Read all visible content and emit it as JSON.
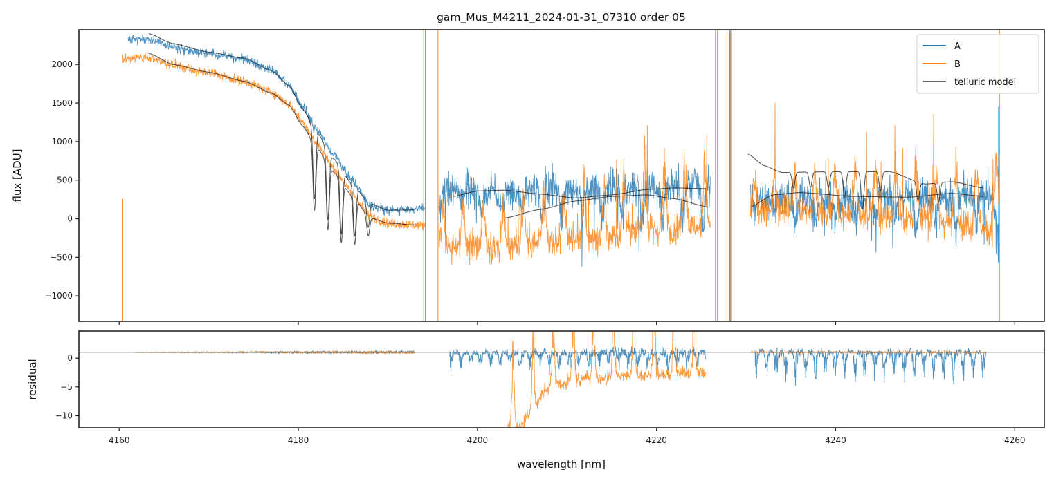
{
  "chart_data": [
    {
      "panel": "flux",
      "type": "line",
      "title": "gam_Mus_M4211_2024-01-31_07310  order 05",
      "xlabel": "",
      "ylabel": "flux [ADU]",
      "xlim": [
        4155.5,
        4263.3
      ],
      "ylim": [
        -1330,
        2450
      ],
      "xticks": [
        4160,
        4180,
        4200,
        4220,
        4240,
        4260
      ],
      "yticks": [
        -1000,
        -500,
        0,
        500,
        1000,
        1500,
        2000
      ],
      "ytick_labels": [
        "−1000",
        "−500",
        "0",
        "500",
        "1000",
        "1500",
        "2000"
      ],
      "grid": false,
      "legend": {
        "placement": "top-right",
        "entries": [
          {
            "label": "A",
            "color": "#1f77b4"
          },
          {
            "label": "B",
            "color": "#ff7f0e"
          },
          {
            "label": "telluric model",
            "color": "#666666"
          }
        ]
      },
      "series": [
        {
          "name": "A",
          "color": "#1f77b4",
          "segments": [
            {
              "x0": 4161.0,
              "x1": 4194.1,
              "continuum": [
                [
                  4161.0,
                  2330
                ],
                [
                  4163.0,
                  2330
                ],
                [
                  4166.0,
                  2230
                ],
                [
                  4170.0,
                  2140
                ],
                [
                  4174.0,
                  2070
                ],
                [
                  4177.0,
                  1930
                ],
                [
                  4179.0,
                  1720
                ],
                [
                  4180.5,
                  1450
                ],
                [
                  4182.0,
                  1150
                ],
                [
                  4184.0,
                  830
                ],
                [
                  4186.0,
                  500
                ],
                [
                  4188.0,
                  180
                ],
                [
                  4190.0,
                  110
                ],
                [
                  4194.1,
                  130
                ]
              ],
              "noise": 45,
              "seed": 11
            },
            {
              "x0": 4195.7,
              "x1": 4226.0,
              "continuum": [
                [
                  4195.7,
                  380
                ],
                [
                  4200.0,
                  400
                ],
                [
                  4210.0,
                  380
                ],
                [
                  4220.0,
                  420
                ],
                [
                  4226.0,
                  430
                ]
              ],
              "noise": 160,
              "seed": 12,
              "osc_amp": 500,
              "osc_period": 2.25,
              "osc_phase": 1.4,
              "osc_dir": -1
            },
            {
              "x0": 4230.5,
              "x1": 4258.2,
              "continuum": [
                [
                  4230.5,
                  300
                ],
                [
                  4240.0,
                  260
                ],
                [
                  4250.0,
                  300
                ],
                [
                  4258.2,
                  320
                ]
              ],
              "noise": 170,
              "seed": 13,
              "osc_amp": 450,
              "osc_period": 2.25,
              "osc_phase": 0.3,
              "osc_dir": -1
            }
          ],
          "spikes": [
            [
              4194.2,
              2450,
              -1330
            ],
            [
              4226.6,
              2450,
              -1330
            ],
            [
              4228.2,
              2450,
              -1330
            ],
            [
              4258.2,
              1450,
              200
            ]
          ]
        },
        {
          "name": "B",
          "color": "#ff7f0e",
          "segments": [
            {
              "x0": 4160.4,
              "x1": 4194.1,
              "continuum": [
                [
                  4160.4,
                  2080
                ],
                [
                  4163.0,
                  2090
                ],
                [
                  4166.0,
                  1990
                ],
                [
                  4170.0,
                  1890
                ],
                [
                  4174.0,
                  1780
                ],
                [
                  4177.0,
                  1640
                ],
                [
                  4179.0,
                  1480
                ],
                [
                  4180.5,
                  1250
                ],
                [
                  4182.0,
                  980
                ],
                [
                  4184.0,
                  650
                ],
                [
                  4186.0,
                  330
                ],
                [
                  4188.0,
                  30
                ],
                [
                  4190.0,
                  -60
                ],
                [
                  4194.1,
                  -90
                ]
              ],
              "noise": 45,
              "seed": 21
            },
            {
              "x0": 4195.7,
              "x1": 4226.0,
              "continuum": [
                [
                  4195.7,
                  -330
                ],
                [
                  4200.0,
                  -380
                ],
                [
                  4210.0,
                  -300
                ],
                [
                  4220.0,
                  -150
                ],
                [
                  4226.0,
                  -100
                ]
              ],
              "noise": 140,
              "seed": 22,
              "osc_amp": 850,
              "osc_period": 2.25,
              "osc_phase": 0.3,
              "osc_dir": 1
            },
            {
              "x0": 4230.5,
              "x1": 4258.2,
              "continuum": [
                [
                  4230.5,
                  100
                ],
                [
                  4240.0,
                  80
                ],
                [
                  4250.0,
                  -20
                ],
                [
                  4258.2,
                  -120
                ]
              ],
              "noise": 150,
              "seed": 23,
              "osc_amp": 800,
              "osc_period": 2.25,
              "osc_phase": 1.3,
              "osc_dir": 1
            }
          ],
          "spikes": [
            [
              4160.4,
              260,
              -1330
            ],
            [
              4194.0,
              2450,
              -1330
            ],
            [
              4195.6,
              2450,
              -1330
            ],
            [
              4226.8,
              2450,
              -1330
            ],
            [
              4228.3,
              2450,
              -1330
            ],
            [
              4258.3,
              2450,
              -1330
            ]
          ]
        }
      ],
      "telluric_model": [
        {
          "for": "A",
          "points": [
            [
              4163.3,
              2400
            ],
            [
              4166.0,
              2270
            ],
            [
              4170.0,
              2160
            ],
            [
              4174.0,
              2080
            ],
            [
              4177.0,
              1920
            ],
            [
              4179.0,
              1720
            ],
            [
              4180.5,
              1420
            ],
            [
              4182.0,
              1130
            ],
            [
              4184.0,
              770
            ],
            [
              4186.0,
              450
            ],
            [
              4188.0,
              200
            ],
            [
              4190.0,
              110
            ],
            [
              4193.0,
              115
            ]
          ],
          "dips": [
            [
              4181.8,
              900
            ],
            [
              4183.3,
              900
            ],
            [
              4184.8,
              850
            ],
            [
              4186.3,
              650
            ],
            [
              4187.8,
              330
            ]
          ]
        },
        {
          "for": "B",
          "points": [
            [
              4163.2,
              2150
            ],
            [
              4166.0,
              2000
            ],
            [
              4170.0,
              1900
            ],
            [
              4174.0,
              1780
            ],
            [
              4177.0,
              1630
            ],
            [
              4179.0,
              1470
            ],
            [
              4180.5,
              1200
            ],
            [
              4182.0,
              930
            ],
            [
              4184.0,
              600
            ],
            [
              4186.0,
              300
            ],
            [
              4188.0,
              10
            ],
            [
              4190.0,
              -55
            ],
            [
              4193.0,
              -80
            ]
          ],
          "dips": [
            [
              4181.8,
              850
            ],
            [
              4183.3,
              850
            ],
            [
              4184.8,
              800
            ],
            [
              4186.3,
              600
            ],
            [
              4187.8,
              250
            ]
          ]
        },
        {
          "for": "A",
          "points": [
            [
              4197.3,
              290
            ],
            [
              4200.0,
              360
            ],
            [
              4203.0,
              370
            ],
            [
              4207.0,
              320
            ],
            [
              4211.0,
              270
            ],
            [
              4215.0,
              310
            ],
            [
              4219.0,
              380
            ],
            [
              4222.0,
              400
            ],
            [
              4225.5,
              390
            ]
          ],
          "dips": []
        },
        {
          "for": "B",
          "points": [
            [
              4203.0,
              10
            ],
            [
              4207.0,
              120
            ],
            [
              4211.0,
              230
            ],
            [
              4215.0,
              290
            ],
            [
              4219.0,
              310
            ],
            [
              4222.0,
              260
            ],
            [
              4225.5,
              160
            ]
          ],
          "dips": []
        },
        {
          "for": "A",
          "points": [
            [
              4230.2,
              840
            ],
            [
              4232.0,
              690
            ],
            [
              4234.0,
              600
            ],
            [
              4240.0,
              610
            ],
            [
              4246.0,
              610
            ],
            [
              4250.0,
              450
            ],
            [
              4253.0,
              480
            ],
            [
              4256.5,
              400
            ]
          ],
          "dips": [
            [
              4235.3,
              200
            ],
            [
              4237.2,
              200
            ],
            [
              4239.2,
              200
            ],
            [
              4241.0,
              330
            ],
            [
              4243.0,
              490
            ],
            [
              4245.0,
              250
            ],
            [
              4249.2,
              240
            ],
            [
              4251.5,
              250
            ]
          ]
        },
        {
          "for": "B",
          "points": [
            [
              4230.6,
              160
            ],
            [
              4233.0,
              310
            ],
            [
              4236.0,
              340
            ],
            [
              4242.0,
              290
            ],
            [
              4248.0,
              280
            ],
            [
              4253.0,
              330
            ],
            [
              4256.5,
              290
            ]
          ],
          "dips": []
        }
      ]
    },
    {
      "panel": "residual",
      "type": "line",
      "xlabel": "wavelength [nm]",
      "ylabel": "residual",
      "xlim": [
        4155.5,
        4263.3
      ],
      "ylim": [
        -12.1,
        4.7
      ],
      "xticks": [
        4160,
        4180,
        4200,
        4220,
        4240,
        4260
      ],
      "xtick_labels": [
        "4160",
        "4180",
        "4200",
        "4220",
        "4240",
        "4260"
      ],
      "yticks": [
        -10,
        -5,
        0
      ],
      "ytick_labels": [
        "−10",
        "−5",
        "0"
      ],
      "reference_line": 1.0,
      "grid": false,
      "series": [
        {
          "name": "A",
          "color": "#1f77b4",
          "segments": [
            {
              "x0": 4161.8,
              "x1": 4193.0,
              "noise_start": 0.05,
              "noise_end": 0.35,
              "seed": 31
            },
            {
              "x0": 4196.9,
              "x1": 4225.5,
              "noise_start": 0.5,
              "noise_end": 1.2,
              "dip_amp": 3.5,
              "seed": 32
            },
            {
              "x0": 4231.0,
              "x1": 4256.8,
              "noise_start": 0.9,
              "noise_end": 0.9,
              "dip_amp": 5.5,
              "seed": 33
            }
          ]
        },
        {
          "name": "B",
          "color": "#ff7f0e",
          "segments": [
            {
              "x0": 4161.8,
              "x1": 4193.0,
              "noise_start": 0.05,
              "noise_end": 0.35,
              "seed": 41
            },
            {
              "x0": 4203.4,
              "x1": 4225.5,
              "noise_start": 0.8,
              "noise_end": 0.8,
              "offset_path": [
                [
                  4203.4,
                  -12
                ],
                [
                  4204.8,
                  -12
                ],
                [
                  4206.0,
                  -9
                ],
                [
                  4208.0,
                  -5
                ],
                [
                  4212.0,
                  -3.5
                ],
                [
                  4225.5,
                  -2.5
                ]
              ],
              "spike_amp": 12,
              "seed": 42
            },
            {
              "x0": 4230.5,
              "x1": 4256.8,
              "noise_start": 0.2,
              "noise_end": 0.2,
              "seed": 43
            }
          ]
        }
      ]
    }
  ]
}
